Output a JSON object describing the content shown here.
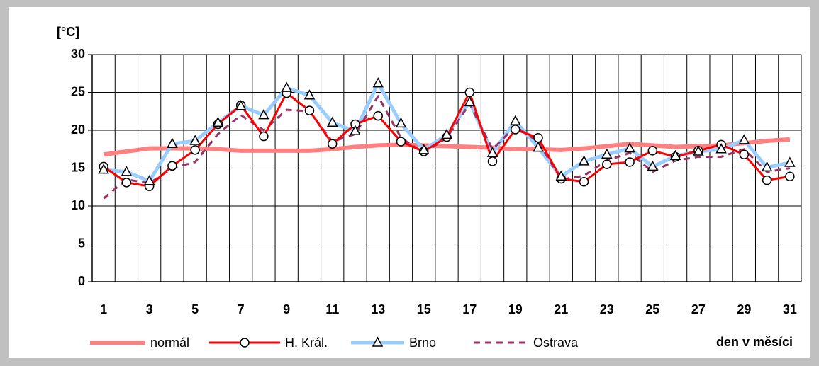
{
  "chart_data": {
    "type": "line",
    "y_label": "[°C]",
    "x_label": "den v měsíci",
    "categories": [
      1,
      null,
      3,
      null,
      5,
      null,
      7,
      null,
      9,
      null,
      11,
      null,
      13,
      null,
      15,
      null,
      17,
      null,
      19,
      null,
      21,
      null,
      23,
      null,
      25,
      null,
      27,
      null,
      29,
      null,
      31
    ],
    "ylim": [
      0,
      30
    ],
    "yticks": [
      0,
      5,
      10,
      15,
      20,
      25,
      30
    ],
    "grid": true,
    "legend": "bottom",
    "series": [
      {
        "name": "normál",
        "color": "#ff8080",
        "width": 6,
        "values": [
          16.8,
          17.2,
          17.6,
          17.6,
          17.6,
          17.5,
          17.3,
          17.3,
          17.3,
          17.3,
          17.5,
          17.8,
          18.0,
          18.1,
          18.0,
          17.9,
          17.8,
          17.7,
          17.5,
          17.5,
          17.4,
          17.6,
          17.9,
          18.2,
          18.0,
          17.8,
          17.9,
          18.0,
          18.3,
          18.6,
          18.8
        ]
      },
      {
        "name": "H. Král.",
        "color": "#ff0000",
        "width": 3,
        "marker": "circle",
        "values": [
          15.2,
          13.1,
          12.6,
          15.3,
          17.4,
          20.8,
          23.3,
          19.2,
          24.9,
          22.6,
          18.2,
          20.8,
          21.9,
          18.5,
          17.2,
          19.1,
          25.0,
          15.9,
          20.1,
          19.0,
          13.6,
          13.2,
          15.5,
          15.8,
          17.3,
          16.5,
          17.3,
          18.1,
          16.8,
          13.4,
          13.9
        ]
      },
      {
        "name": "Brno",
        "color": "#99ccff",
        "width": 5,
        "marker": "triangle",
        "values": [
          14.8,
          14.5,
          13.3,
          18.2,
          18.6,
          21.0,
          23.2,
          22.0,
          25.6,
          24.6,
          21.0,
          19.9,
          26.2,
          20.9,
          17.4,
          19.4,
          23.7,
          17.0,
          21.2,
          17.7,
          13.9,
          15.9,
          16.8,
          17.6,
          15.2,
          16.6,
          17.2,
          17.5,
          18.7,
          15.1,
          15.7
        ]
      },
      {
        "name": "Ostrava",
        "color": "#993366",
        "width": 3,
        "dash": true,
        "values": [
          11.0,
          13.5,
          13.0,
          15.0,
          15.8,
          19.5,
          22.0,
          20.0,
          22.7,
          22.5,
          18.5,
          19.5,
          24.5,
          19.0,
          17.0,
          19.0,
          23.5,
          17.5,
          20.5,
          18.5,
          13.5,
          14.0,
          16.0,
          17.0,
          14.5,
          16.0,
          16.5,
          16.5,
          17.5,
          14.5,
          15.0
        ]
      }
    ]
  }
}
